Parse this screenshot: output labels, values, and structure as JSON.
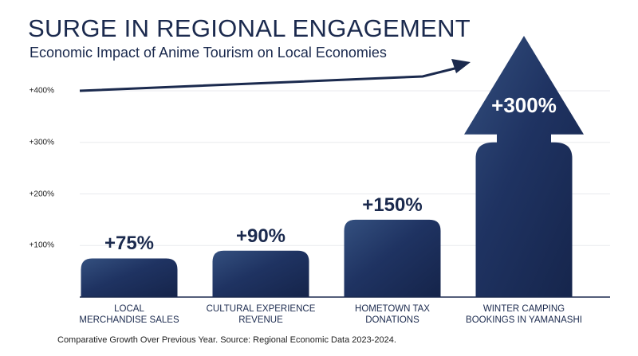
{
  "chart_data": {
    "type": "bar",
    "title": "SURGE IN REGIONAL ENGAGEMENT",
    "subtitle": "Economic Impact of Anime Tourism on Local Economies",
    "categories": [
      "LOCAL\nMERCHANDISE SALES",
      "CULTURAL EXPERIENCE\nREVENUE",
      "HOMETOWN TAX\nDONATIONS",
      "WINTER CAMPING\nBOOKINGS IN YAMANASHI"
    ],
    "values": [
      75,
      90,
      150,
      300
    ],
    "value_labels": [
      "+75%",
      "+90%",
      "+150%",
      "+300%"
    ],
    "color": "#1c2d55",
    "ylim": [
      0,
      400
    ],
    "yticks": [
      {
        "value": 100,
        "label": "+100%"
      },
      {
        "value": 200,
        "label": "+200%"
      },
      {
        "value": 300,
        "label": "+300%"
      },
      {
        "value": 400,
        "label": "+400%"
      }
    ],
    "note": "Comparative Growth Over Previous Year. Source: Regional Economic Data 2023-2024."
  }
}
